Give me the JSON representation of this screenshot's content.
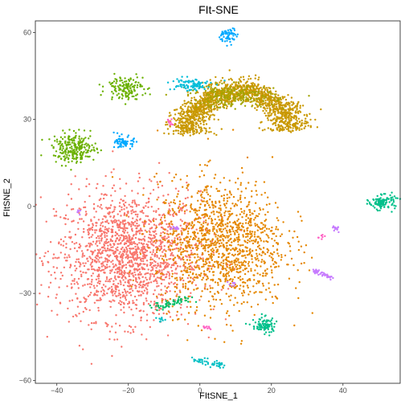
{
  "chart_data": {
    "type": "scatter",
    "title": "FIt-SNE",
    "xlabel": "FItSNE_1",
    "ylabel": "FItSNE_2",
    "xlim": [
      -46,
      56
    ],
    "ylim": [
      -61,
      64
    ],
    "x_ticks": [
      -40,
      -20,
      0,
      20,
      40
    ],
    "y_ticks": [
      -60,
      -30,
      0,
      30,
      60
    ],
    "x_tick_labels": [
      "−40",
      "−20",
      "0",
      "20",
      "40"
    ],
    "y_tick_labels": [
      "−60",
      "−30",
      "0",
      "30",
      "60"
    ],
    "grid": false,
    "legend": "none",
    "point_radius": 1.2,
    "clusters": [
      {
        "color": "#F8766D",
        "shape": "blob",
        "x": -20,
        "y": -17,
        "sx": 10,
        "sy": 11,
        "n": 1700
      },
      {
        "color": "#E58700",
        "shape": "blob",
        "x": 6,
        "y": -13,
        "sx": 9,
        "sy": 11,
        "n": 1300
      },
      {
        "color": "#C99800",
        "shape": "arc",
        "x": 11,
        "y": 27,
        "rx": 14,
        "ry": 17,
        "start": -100,
        "end": 95,
        "width": 5,
        "n": 1500
      },
      {
        "color": "#A3A500",
        "shape": "blob",
        "x": 9,
        "y": 38,
        "sx": 6,
        "sy": 2,
        "n": 200
      },
      {
        "color": "#6BB100",
        "shape": "blob",
        "x": -35,
        "y": 20,
        "sx": 3,
        "sy": 2.5,
        "n": 240
      },
      {
        "color": "#6BB100",
        "shape": "blob",
        "x": -21,
        "y": 41,
        "sx": 2.6,
        "sy": 2,
        "n": 140
      },
      {
        "color": "#00BCD8",
        "shape": "blob",
        "x": -3,
        "y": 42,
        "sx": 3,
        "sy": 1.2,
        "n": 90
      },
      {
        "color": "#00A9FF",
        "shape": "blob",
        "x": 8,
        "y": 59,
        "sx": 1.2,
        "sy": 1.3,
        "n": 60
      },
      {
        "color": "#00A9FF",
        "shape": "blob",
        "x": -21,
        "y": 22,
        "sx": 1.3,
        "sy": 1.1,
        "n": 70
      },
      {
        "color": "#00C08B",
        "shape": "blob",
        "x": 51,
        "y": 1.5,
        "sx": 1.8,
        "sy": 1.2,
        "n": 110
      },
      {
        "color": "#00C08B",
        "shape": "blob",
        "x": 18,
        "y": -41,
        "sx": 1.7,
        "sy": 1.5,
        "n": 90
      },
      {
        "color": "#00BE67",
        "shape": "line",
        "x1": -13,
        "y1": -35,
        "x2": -3,
        "y2": -32,
        "jitter": 0.7,
        "n": 55
      },
      {
        "color": "#00BFC4",
        "shape": "line",
        "x1": -1,
        "y1": -53,
        "x2": 7,
        "y2": -55,
        "jitter": 0.6,
        "n": 45
      },
      {
        "color": "#00BFC4",
        "shape": "blob",
        "x": -11,
        "y": -39,
        "sx": 0.5,
        "sy": 0.5,
        "n": 10
      },
      {
        "color": "#C77CFF",
        "shape": "line",
        "x1": 32,
        "y1": -22,
        "x2": 37,
        "y2": -25,
        "jitter": 0.4,
        "n": 40
      },
      {
        "color": "#C77CFF",
        "shape": "blob",
        "x": 38,
        "y": -7.5,
        "sx": 0.5,
        "sy": 0.6,
        "n": 12
      },
      {
        "color": "#C77CFF",
        "shape": "blob",
        "x": -7,
        "y": -7.5,
        "sx": 1.2,
        "sy": 0.3,
        "n": 14
      },
      {
        "color": "#C77CFF",
        "shape": "blob",
        "x": -34,
        "y": -2,
        "sx": 0.4,
        "sy": 0.4,
        "n": 6
      },
      {
        "color": "#C77CFF",
        "shape": "blob",
        "x": 9,
        "y": -27,
        "sx": 0.6,
        "sy": 0.4,
        "n": 8
      },
      {
        "color": "#FF61C3",
        "shape": "blob",
        "x": -8.5,
        "y": 29,
        "sx": 0.5,
        "sy": 0.6,
        "n": 12
      },
      {
        "color": "#FF61C3",
        "shape": "blob",
        "x": 34,
        "y": -10.5,
        "sx": 0.5,
        "sy": 0.4,
        "n": 7
      },
      {
        "color": "#FF61C3",
        "shape": "blob",
        "x": 2,
        "y": -42,
        "sx": 0.5,
        "sy": 0.5,
        "n": 9
      }
    ]
  }
}
